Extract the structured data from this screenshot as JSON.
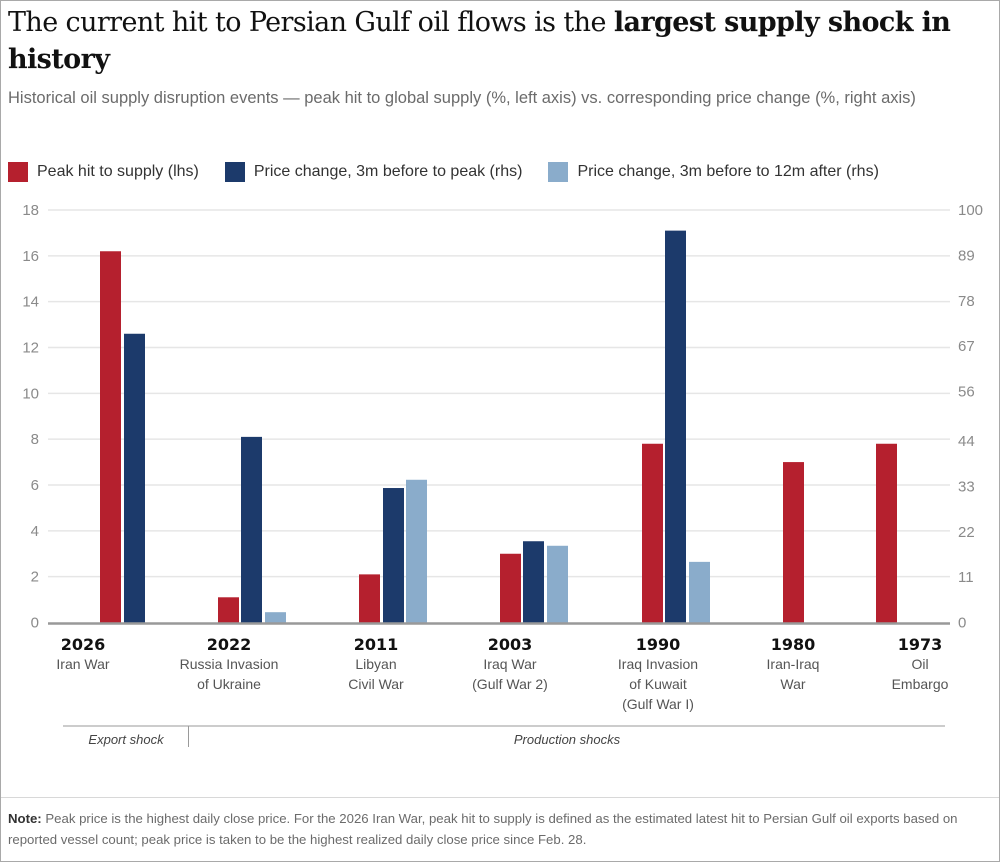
{
  "title": {
    "regular": "The current hit to Persian Gulf oil flows is the ",
    "bold": "largest supply shock in history"
  },
  "subtitle": "Historical oil supply disruption events — peak hit to global supply (%, left axis) vs. corresponding price change (%, right axis)",
  "colors": {
    "supply": "#b5202e",
    "price_peak": "#1c3a6b",
    "price_12m": "#8aaccb",
    "gridline": "#e6e6e6",
    "axis": "#999999"
  },
  "chart_data": {
    "type": "bar",
    "title": "The current hit to Persian Gulf oil flows is the largest supply shock in history",
    "categories": [
      {
        "year": "2026",
        "name": [
          "Iran War"
        ]
      },
      {
        "year": "2022",
        "name": [
          "Russia Invasion",
          "of Ukraine"
        ]
      },
      {
        "year": "2011",
        "name": [
          "Libyan",
          "Civil War"
        ]
      },
      {
        "year": "2003",
        "name": [
          "Iraq War",
          "(Gulf War 2)"
        ]
      },
      {
        "year": "1990",
        "name": [
          "Iraq Invasion",
          "of Kuwait",
          "(Gulf War I)"
        ]
      },
      {
        "year": "1980",
        "name": [
          "Iran-Iraq",
          "War"
        ]
      },
      {
        "year": "1973",
        "name": [
          "Oil",
          "Embargo"
        ]
      }
    ],
    "series": [
      {
        "name": "Peak hit to supply (lhs)",
        "axis": "left",
        "values": [
          16.2,
          1.1,
          2.1,
          3.0,
          7.8,
          7.0,
          7.8
        ]
      },
      {
        "name": "Price change, 3m before to peak (rhs)",
        "axis": "right",
        "values": [
          70,
          45,
          32.6,
          19.7,
          95,
          null,
          null
        ]
      },
      {
        "name": "Price change, 3m before to 12m after (rhs)",
        "axis": "right",
        "values": [
          null,
          2.5,
          34.6,
          18.6,
          14.7,
          null,
          null
        ]
      }
    ],
    "left_axis": {
      "label": "Peak hit to global supply (%)",
      "range": [
        0,
        18
      ],
      "ticks": [
        0,
        2,
        4,
        6,
        8,
        10,
        12,
        14,
        16,
        18
      ]
    },
    "right_axis": {
      "label": "Price change (%)",
      "range": [
        0,
        100
      ],
      "ticks": [
        0,
        11,
        22,
        33,
        44,
        56,
        67,
        78,
        89,
        100
      ]
    },
    "grid": true,
    "legend_position": "top-left",
    "groups": [
      {
        "label": "Export shock",
        "categories": [
          "2026"
        ]
      },
      {
        "label": "Production shocks",
        "categories": [
          "2022",
          "2011",
          "2003",
          "1990",
          "1980",
          "1973"
        ]
      }
    ]
  },
  "note": {
    "label": "Note:",
    "text": " Peak price is the highest daily close price. For the 2026 Iran War, peak hit to supply is defined as the estimated latest hit to Persian Gulf oil exports based on reported vessel count; peak price is taken to be the highest realized daily close price since Feb. 28."
  }
}
